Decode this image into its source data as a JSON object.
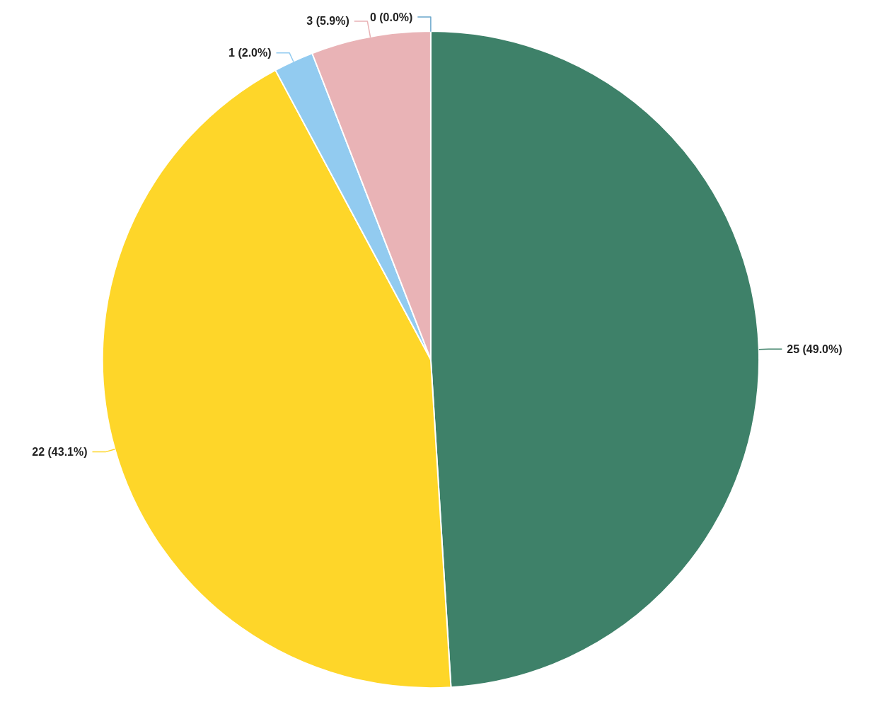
{
  "chart_data": {
    "type": "pie",
    "categories": [
      null,
      null,
      null,
      null,
      null
    ],
    "values": [
      25,
      22,
      1,
      3,
      0
    ],
    "colors": [
      "#3e8169",
      "#fed629",
      "#92cbf0",
      "#e9b3b6",
      "#6aa7cc"
    ],
    "value_labels": [
      "25 (49.0%)",
      "22 (43.1%)",
      "1 (2.0%)",
      "3 (5.9%)",
      "0 (0.0%)"
    ]
  }
}
